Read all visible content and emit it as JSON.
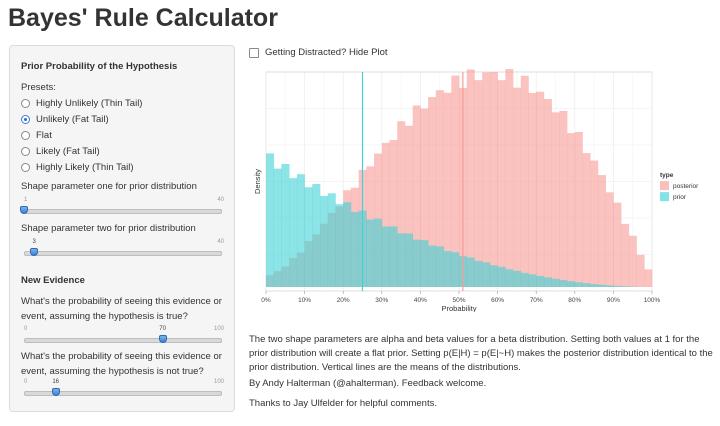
{
  "app": {
    "title": "Bayes' Rule Calculator"
  },
  "sidebar": {
    "prior_title": "Prior Probability of the Hypothesis",
    "presets_label": "Presets:",
    "presets": [
      {
        "label": "Highly Unlikely (Thin Tail)",
        "checked": false
      },
      {
        "label": "Unlikely (Fat Tail)",
        "checked": true
      },
      {
        "label": "Flat",
        "checked": false
      },
      {
        "label": "Likely (Fat Tail)",
        "checked": false
      },
      {
        "label": "Highly Likely (Thin Tail)",
        "checked": false
      }
    ],
    "shape1": {
      "label": "Shape parameter one for prior distribution",
      "min": "1",
      "max": "40",
      "value": 1
    },
    "shape2": {
      "label": "Shape parameter two for prior distribution",
      "min": "1",
      "max": "40",
      "value": 3,
      "value_label": "3"
    },
    "evidence_title": "New Evidence",
    "pe_h": {
      "label": "What's the probability of seeing this evidence or event, assuming the hypothesis is true?",
      "min": "0",
      "max": "100",
      "value": 70,
      "value_label": "70"
    },
    "pe_not_h": {
      "label": "What's the probability of seeing this evidence or event, assuming the hypothesis is not true?",
      "min": "0",
      "max": "100",
      "value": 16,
      "value_label": "16"
    }
  },
  "main": {
    "hide_plot_label": "Getting Distracted? Hide Plot",
    "hide_plot_checked": false,
    "desc1": "The two shape parameters are alpha and beta values for a beta distribution. Setting both values at 1 for the prior distribution will create a flat prior. Setting p(E|H) = p(E|~H) makes the posterior distribution identical to the prior distribution. Vertical lines are the means of the distributions.",
    "desc2": "By Andy Halterman (@ahalterman). Feedback welcome.",
    "desc3": "Thanks to Jay Ulfelder for helpful comments."
  },
  "colors": {
    "prior": "#40d2d6",
    "posterior": "#f79b96",
    "accent": "#3a7bd5"
  },
  "chart_data": {
    "type": "bar",
    "xlabel": "Probability",
    "ylabel": "Density",
    "xlim": [
      0,
      1
    ],
    "xticks": [
      "0%",
      "10%",
      "20%",
      "30%",
      "40%",
      "50%",
      "60%",
      "70%",
      "80%",
      "90%",
      "100%"
    ],
    "legend_title": "type",
    "legend_position": "right",
    "grid": true,
    "series": [
      {
        "name": "prior",
        "color": "#40d2d6",
        "mean": 0.25,
        "density_shape": "beta(1,3) histogram, highest at 0%, decreasing to 0 at 100%"
      },
      {
        "name": "posterior",
        "color": "#f79b96",
        "mean": 0.51,
        "density_shape": "histogram, low near 0%, rising to a peak near 68%, falling to 0 at 100%"
      }
    ]
  }
}
